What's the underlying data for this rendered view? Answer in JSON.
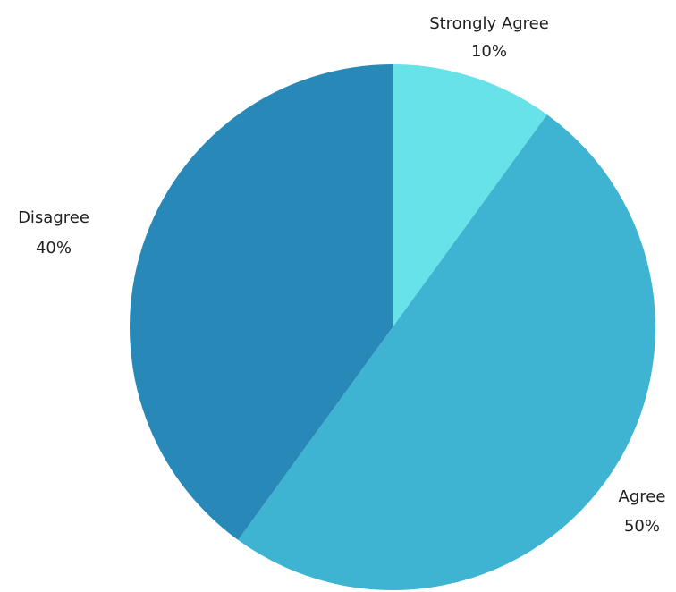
{
  "chart_data": {
    "type": "pie",
    "slices": [
      {
        "label": "Strongly Agree",
        "value": 10,
        "value_label": "10%",
        "color": "#67e2e8"
      },
      {
        "label": "Agree",
        "value": 50,
        "value_label": "50%",
        "color": "#3fb3d2"
      },
      {
        "label": "Disagree",
        "value": 40,
        "value_label": "40%",
        "color": "#2889b8"
      }
    ],
    "start_angle": "12 o'clock",
    "direction": "clockwise",
    "legend": "none",
    "labels_position": "outside"
  }
}
